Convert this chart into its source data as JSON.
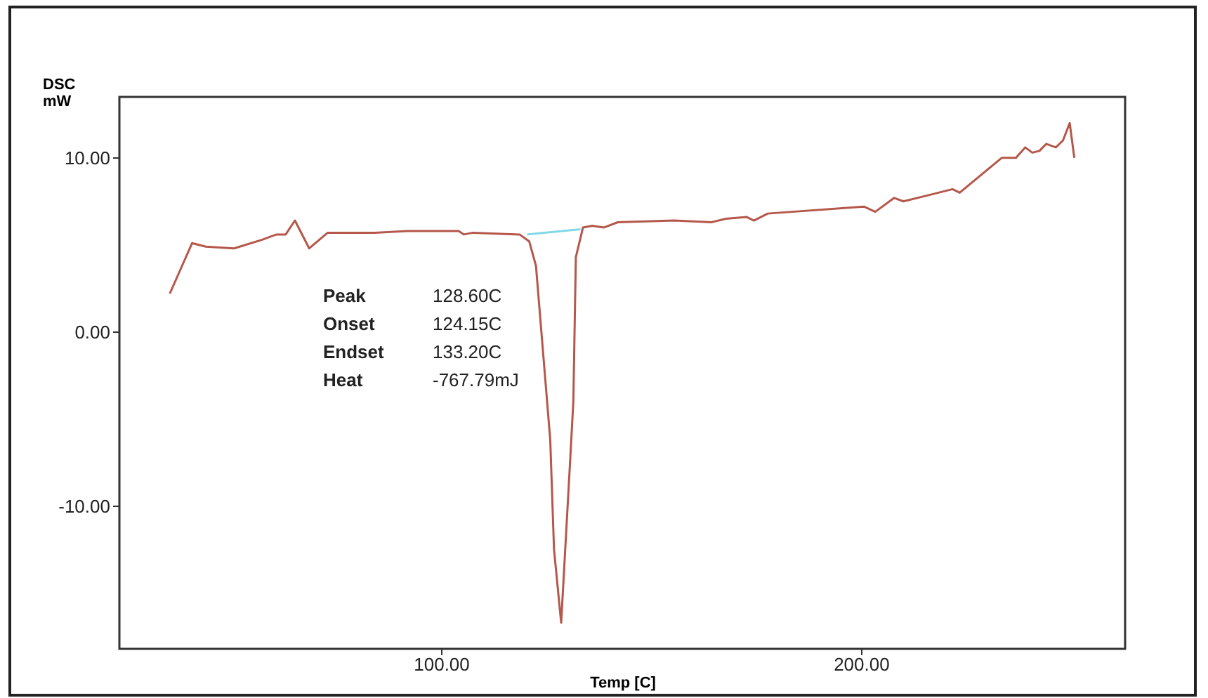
{
  "chart_data": {
    "type": "line",
    "xlabel": "Temp [C]",
    "ylabel": "DSC\nmW",
    "xlim": [
      23.4,
      262.9
    ],
    "ylim": [
      -18.2,
      13.5
    ],
    "xticks": [
      {
        "value": 100,
        "label": "100.00"
      },
      {
        "value": 200,
        "label": "200.00"
      }
    ],
    "yticks": [
      {
        "value": -10,
        "label": "-10.00"
      },
      {
        "value": 0,
        "label": "0.00"
      },
      {
        "value": 10,
        "label": "10.00"
      }
    ],
    "annotations": [
      "Peak",
      "128.60C",
      "Onset",
      "124.15C",
      "Endset",
      "133.20C",
      "Heat",
      "-767.79mJ"
    ],
    "series": [
      {
        "color": "#b5574a",
        "x": [
          35.4,
          40.7,
          44.0,
          50.7,
          57.4,
          60.8,
          63.0,
          65.2,
          68.6,
          73.0,
          84.2,
          92.0,
          104.2,
          105.4,
          107.6,
          118.7,
          121.0,
          122.6,
          126.0,
          126.9,
          128.6,
          130.6,
          131.5,
          132.1,
          133.8,
          136.0,
          138.8,
          142.1,
          155.5,
          164.4,
          167.8,
          172.8,
          174.5,
          177.8,
          200.7,
          203.4,
          207.9,
          210.1,
          216.8,
          221.8,
          223.5,
          233.5,
          236.9,
          239.1,
          240.8,
          242.5,
          244.1,
          246.4,
          248.1,
          249.7,
          250.8
        ],
        "values": [
          2.2,
          5.1,
          4.9,
          4.8,
          5.3,
          5.6,
          5.6,
          6.4,
          4.8,
          5.7,
          5.7,
          5.8,
          5.8,
          5.6,
          5.7,
          5.6,
          5.2,
          3.8,
          -6.2,
          -12.5,
          -16.7,
          -8.0,
          -4.0,
          4.3,
          6.0,
          6.1,
          6.0,
          6.3,
          6.4,
          6.3,
          6.5,
          6.6,
          6.4,
          6.8,
          7.2,
          6.9,
          7.7,
          7.5,
          7.9,
          8.2,
          8.0,
          10.0,
          10.0,
          10.6,
          10.3,
          10.4,
          10.8,
          10.6,
          11.0,
          12.0,
          10.0
        ]
      },
      {
        "color": "#80d8e8",
        "x": [
          120.5,
          133.2
        ],
        "values": [
          5.6,
          5.9
        ]
      }
    ]
  }
}
